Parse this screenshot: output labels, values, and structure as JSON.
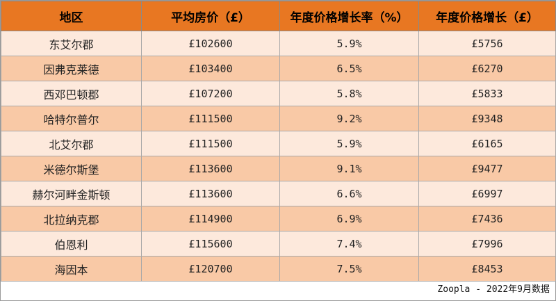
{
  "table": {
    "headers": [
      "地区",
      "平均房价（£）",
      "年度价格增长率（%）",
      "年度价格增长（£）"
    ],
    "rows": [
      [
        "东艾尔郡",
        "£102600",
        "5.9%",
        "£5756"
      ],
      [
        "因弗克莱德",
        "£103400",
        "6.5%",
        "£6270"
      ],
      [
        "西邓巴顿郡",
        "£107200",
        "5.8%",
        "£5833"
      ],
      [
        "哈特尔普尔",
        "£111500",
        "9.2%",
        "£9348"
      ],
      [
        "北艾尔郡",
        "£111500",
        "5.9%",
        "£6165"
      ],
      [
        "米德尔斯堡",
        "£113600",
        "9.1%",
        "£9477"
      ],
      [
        "赫尔河畔金斯顿",
        "£113600",
        "6.6%",
        "£6997"
      ],
      [
        "北拉纳克郡",
        "£114900",
        "6.9%",
        "£7436"
      ],
      [
        "伯恩利",
        "£115600",
        "7.4%",
        "£7996"
      ],
      [
        "海因本",
        "£120700",
        "7.5%",
        "£8453"
      ]
    ]
  },
  "source": "Zoopla - 2022年9月数据",
  "colors": {
    "header_bg": "#e87722",
    "row_light": "#fde9dc",
    "row_dark": "#f9c9a6"
  }
}
